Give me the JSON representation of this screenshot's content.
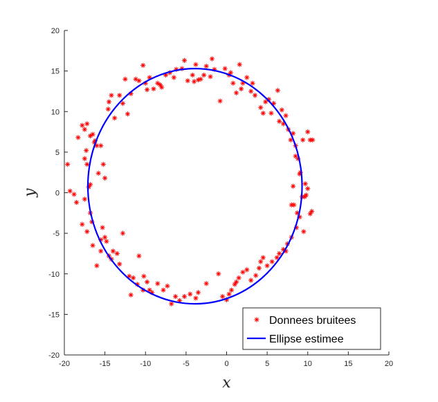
{
  "chart_data": {
    "type": "scatter",
    "title": "",
    "xlabel": "x",
    "ylabel": "y",
    "xlim": [
      -20,
      20
    ],
    "ylim": [
      -20,
      20
    ],
    "xticks": [
      -20,
      -15,
      -10,
      -5,
      0,
      5,
      10,
      15,
      20
    ],
    "yticks": [
      -20,
      -15,
      -10,
      -5,
      0,
      5,
      10,
      15,
      20
    ],
    "grid": false,
    "legend_position": "bottom-right",
    "series": [
      {
        "name": "Donnees bruitees",
        "kind": "markers",
        "marker": "asterisk",
        "color": "#ff0000",
        "points": [
          [
            -19.6,
            3.5
          ],
          [
            -19.3,
            0.2
          ],
          [
            -18.8,
            -0.2
          ],
          [
            -18.5,
            -1.2
          ],
          [
            -18.3,
            6.8
          ],
          [
            -17.8,
            8.3
          ],
          [
            -17.5,
            7.8
          ],
          [
            -17.5,
            4.2
          ],
          [
            -17.3,
            5.2
          ],
          [
            -17.2,
            3.5
          ],
          [
            -17.0,
            0.7
          ],
          [
            -16.8,
            -2.5
          ],
          [
            -16.5,
            7.2
          ],
          [
            -16.3,
            6.2
          ],
          [
            -16.0,
            5.8
          ],
          [
            -17.8,
            -3.9
          ],
          [
            -17.2,
            -4.8
          ],
          [
            -16.5,
            -6.5
          ],
          [
            -16.0,
            -9.0
          ],
          [
            -15.5,
            -7.2
          ],
          [
            -15.3,
            -4.3
          ],
          [
            -15.0,
            -5.5
          ],
          [
            -14.8,
            -6.0
          ],
          [
            -14.5,
            -7.8
          ],
          [
            -14.0,
            -7.2
          ],
          [
            -13.5,
            -7.5
          ],
          [
            -13.2,
            -8.8
          ],
          [
            -12.8,
            -5.0
          ],
          [
            -15.5,
            5.8
          ],
          [
            -15.2,
            3.5
          ],
          [
            -15.0,
            1.8
          ],
          [
            -14.5,
            11.2
          ],
          [
            -14.2,
            12.0
          ],
          [
            -13.8,
            9.2
          ],
          [
            -13.2,
            12.0
          ],
          [
            -12.8,
            11.0
          ],
          [
            -12.5,
            14.0
          ],
          [
            -12.2,
            9.7
          ],
          [
            -11.8,
            12.2
          ],
          [
            -10.8,
            13.8
          ],
          [
            -10.3,
            15.7
          ],
          [
            -10.0,
            13.5
          ],
          [
            -9.8,
            12.7
          ],
          [
            -9.5,
            14.2
          ],
          [
            -9.0,
            12.8
          ],
          [
            -8.5,
            13.5
          ],
          [
            -8.0,
            13.0
          ],
          [
            -7.5,
            14.5
          ],
          [
            -6.5,
            14.2
          ],
          [
            -6.2,
            15.2
          ],
          [
            -5.5,
            15.3
          ],
          [
            -5.2,
            16.3
          ],
          [
            -4.8,
            13.8
          ],
          [
            -4.2,
            14.5
          ],
          [
            -3.8,
            15.8
          ],
          [
            -3.5,
            13.9
          ],
          [
            -3.2,
            14.0
          ],
          [
            -2.8,
            14.5
          ],
          [
            -2.5,
            15.6
          ],
          [
            -1.8,
            16.5
          ],
          [
            -1.5,
            15.2
          ],
          [
            -0.8,
            11.3
          ],
          [
            -0.2,
            15.3
          ],
          [
            0.3,
            14.5
          ],
          [
            0.8,
            13.5
          ],
          [
            1.2,
            12.3
          ],
          [
            1.6,
            15.8
          ],
          [
            2.0,
            13.5
          ],
          [
            2.5,
            14.2
          ],
          [
            3.0,
            12.5
          ],
          [
            3.5,
            12.0
          ],
          [
            4.2,
            10.5
          ],
          [
            4.8,
            11.2
          ],
          [
            5.2,
            11.5
          ],
          [
            5.8,
            11.0
          ],
          [
            6.3,
            12.6
          ],
          [
            6.8,
            10.2
          ],
          [
            7.0,
            8.5
          ],
          [
            7.3,
            9.5
          ],
          [
            7.6,
            7.8
          ],
          [
            7.9,
            6.5
          ],
          [
            8.2,
            7.3
          ],
          [
            8.5,
            5.8
          ],
          [
            8.8,
            4.2
          ],
          [
            9.1,
            2.5
          ],
          [
            9.4,
            6.5
          ],
          [
            9.7,
            1.1
          ],
          [
            10.0,
            7.5
          ],
          [
            10.3,
            6.5
          ],
          [
            10.6,
            6.5
          ],
          [
            8.0,
            -1.5
          ],
          [
            8.3,
            -1.5
          ],
          [
            8.7,
            -2.5
          ],
          [
            9.0,
            -3.0
          ],
          [
            9.3,
            -0.5
          ],
          [
            9.6,
            -0.5
          ],
          [
            10.0,
            0.5
          ],
          [
            10.5,
            -2.3
          ],
          [
            10.3,
            -2.6
          ],
          [
            8.6,
            -4.3
          ],
          [
            8.0,
            -5.5
          ],
          [
            7.5,
            -6.3
          ],
          [
            7.0,
            -7.0
          ],
          [
            6.5,
            -7.5
          ],
          [
            6.2,
            -8.0
          ],
          [
            5.6,
            -8.5
          ],
          [
            5.0,
            -9.0
          ],
          [
            4.5,
            -8.0
          ],
          [
            4.0,
            -9.3
          ],
          [
            3.6,
            -10.2
          ],
          [
            3.0,
            -10.8
          ],
          [
            2.5,
            -9.5
          ],
          [
            2.0,
            -9.8
          ],
          [
            1.5,
            -10.5
          ],
          [
            1.0,
            -11.3
          ],
          [
            0.6,
            -12.0
          ],
          [
            0.3,
            -12.5
          ],
          [
            0.0,
            -13.2
          ],
          [
            -1.0,
            -10.0
          ],
          [
            -2.5,
            -11.2
          ],
          [
            -3.5,
            -12.3
          ],
          [
            -4.5,
            -12.5
          ],
          [
            -5.2,
            -12.8
          ],
          [
            -5.8,
            -13.3
          ],
          [
            -6.3,
            -12.8
          ],
          [
            -6.8,
            -13.7
          ],
          [
            -7.3,
            -11.5
          ],
          [
            -7.8,
            -12.0
          ],
          [
            -8.5,
            -11.2
          ],
          [
            -9.2,
            -12.3
          ],
          [
            -9.8,
            -11.0
          ],
          [
            -10.3,
            -12.0
          ],
          [
            -11.0,
            -11.3
          ],
          [
            -11.5,
            -10.5
          ],
          [
            -11.8,
            -12.6
          ],
          [
            -10.8,
            -7.8
          ],
          [
            -10.2,
            -10.3
          ],
          [
            -15.8,
            2.4
          ],
          [
            -17.5,
            -0.8
          ],
          [
            -16.8,
            1.0
          ],
          [
            -17.2,
            8.5
          ],
          [
            -16.2,
            6.4
          ],
          [
            -16.8,
            7.0
          ],
          [
            -14.6,
            10.3
          ],
          [
            -11.2,
            14.0
          ],
          [
            -8.2,
            13.3
          ],
          [
            -7.0,
            14.8
          ],
          [
            -4.0,
            13.7
          ],
          [
            -2.0,
            14.3
          ],
          [
            0.5,
            14.8
          ],
          [
            1.8,
            12.8
          ],
          [
            3.2,
            13.5
          ],
          [
            4.5,
            9.8
          ],
          [
            5.5,
            9.8
          ],
          [
            6.5,
            8.8
          ],
          [
            8.5,
            4.5
          ],
          [
            9.0,
            2.3
          ],
          [
            8.2,
            0.8
          ],
          [
            9.8,
            -0.3
          ],
          [
            9.5,
            -4.8
          ],
          [
            7.3,
            -7.2
          ],
          [
            4.2,
            -8.5
          ],
          [
            1.2,
            -11.0
          ],
          [
            -0.5,
            -12.8
          ],
          [
            -3.8,
            -13.0
          ],
          [
            -9.5,
            -12.0
          ],
          [
            -12.0,
            -10.3
          ],
          [
            -14.2,
            -8.2
          ],
          [
            -15.5,
            -5.8
          ],
          [
            -16.6,
            -3.6
          ]
        ]
      },
      {
        "name": "Ellipse estimee",
        "kind": "line",
        "color": "#0000ff",
        "ellipse": {
          "center": [
            -3.9,
            0.8
          ],
          "rx": 13.2,
          "ry": 14.5
        }
      }
    ]
  }
}
